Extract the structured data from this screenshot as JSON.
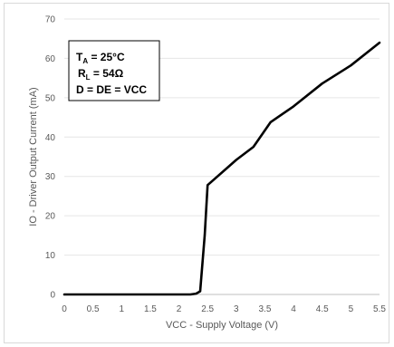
{
  "chart_data": {
    "type": "line",
    "xlabel": "VCC - Supply Voltage (V)",
    "ylabel": "IO - Driver Output Current (mA)",
    "xlim": [
      0,
      5.5
    ],
    "ylim": [
      0,
      70
    ],
    "xticks": [
      "0",
      "0.5",
      "1",
      "1.5",
      "2",
      "2.5",
      "3",
      "3.5",
      "4",
      "4.5",
      "5",
      "5.5"
    ],
    "yticks": [
      "0",
      "10",
      "20",
      "30",
      "40",
      "50",
      "60",
      "70"
    ],
    "grid": "horizontal",
    "legend": "none",
    "series": [
      {
        "color": "#000000",
        "x": [
          0,
          1.0,
          2.0,
          2.2,
          2.3,
          2.37,
          2.45,
          2.5,
          3.0,
          3.3,
          3.6,
          4.0,
          4.5,
          5.0,
          5.5
        ],
        "values": [
          0,
          0,
          0,
          0,
          0.2,
          0.8,
          15,
          27.8,
          34.2,
          37.5,
          43.8,
          47.8,
          53.6,
          58.2,
          64
        ]
      }
    ],
    "annotation": {
      "ta_label": "T",
      "ta_sub": "A",
      "ta_value": " = 25°C",
      "rl_label": "R",
      "rl_sub": "L",
      "rl_value": " = 54Ω",
      "line3": "D = DE = VCC"
    }
  }
}
